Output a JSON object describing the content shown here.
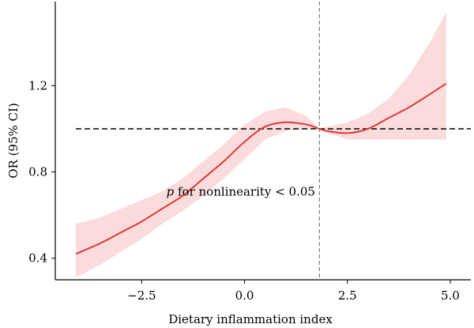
{
  "chart_data": {
    "type": "line",
    "title": "",
    "xlabel": "Dietary inflammation index",
    "ylabel": "OR (95% CI)",
    "xlim": [
      -4.6,
      5.5
    ],
    "ylim": [
      0.3,
      1.59
    ],
    "x_ticks": [
      -2.5,
      0.0,
      2.5,
      5.0
    ],
    "x_tick_labels": [
      "−2.5",
      "0.0",
      "2.5",
      "5.0"
    ],
    "y_ticks": [
      0.4,
      0.8,
      1.2
    ],
    "y_tick_labels": [
      "0.4",
      "0.8",
      "1.2"
    ],
    "grid": false,
    "reference_line_y": 1.0,
    "reference_line_x": 1.82,
    "annotation": {
      "p": "p",
      "rest": " for nonlinearity < 0.05",
      "x": -1.9,
      "y": 0.69
    },
    "colors": {
      "line": "#e03a3a",
      "band": "#fbdcdc",
      "reference": "#000000",
      "vertical": "#666666"
    },
    "series": [
      {
        "x": [
          -4.1,
          -3.5,
          -3.0,
          -2.5,
          -2.0,
          -1.5,
          -1.0,
          -0.5,
          0.0,
          0.5,
          1.0,
          1.5,
          1.82,
          2.0,
          2.5,
          3.0,
          3.5,
          4.0,
          4.5,
          4.9
        ],
        "y": [
          0.42,
          0.47,
          0.52,
          0.57,
          0.63,
          0.69,
          0.77,
          0.85,
          0.94,
          1.01,
          1.03,
          1.02,
          1.0,
          0.99,
          0.98,
          1.0,
          1.05,
          1.1,
          1.16,
          1.21
        ],
        "lower": [
          0.31,
          0.37,
          0.43,
          0.49,
          0.56,
          0.62,
          0.69,
          0.77,
          0.86,
          0.95,
          0.99,
          1.0,
          1.0,
          0.98,
          0.95,
          0.95,
          0.95,
          0.95,
          0.95,
          0.95
        ],
        "upper": [
          0.56,
          0.59,
          0.63,
          0.67,
          0.71,
          0.77,
          0.85,
          0.93,
          1.02,
          1.08,
          1.1,
          1.06,
          1.0,
          1.01,
          1.03,
          1.07,
          1.14,
          1.25,
          1.4,
          1.54
        ]
      }
    ]
  }
}
